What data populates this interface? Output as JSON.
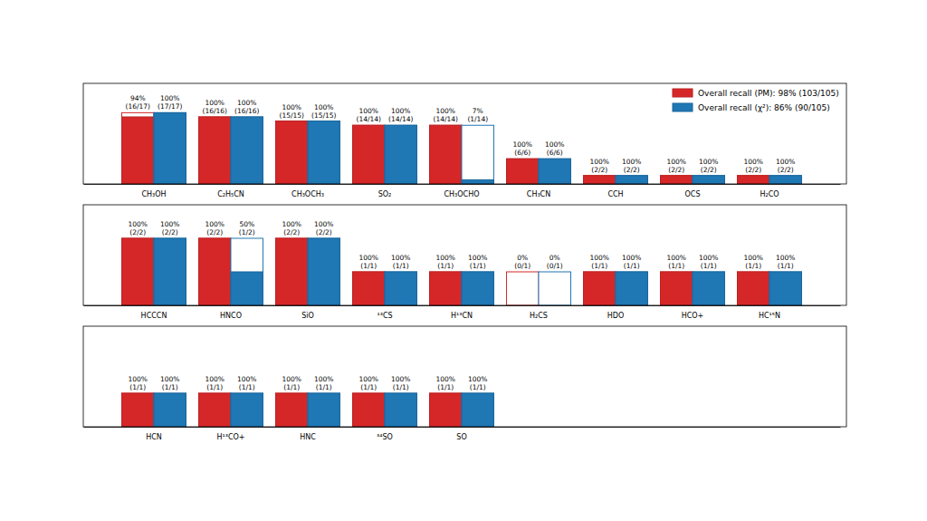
{
  "chart_data": [
    {
      "type": "bar",
      "categories": [
        "CH₃OH",
        "C₂H₅CN",
        "CH₃OCH₃",
        "SO₂",
        "CH₃OCHO",
        "CH₃CN",
        "CCH",
        "OCS",
        "H₂CO"
      ],
      "series": [
        {
          "name": "Overall recall (PM): 98% (103/105)",
          "color": "#d62728",
          "values": [
            16,
            16,
            15,
            14,
            14,
            6,
            2,
            2,
            2
          ],
          "totals": [
            17,
            16,
            15,
            14,
            14,
            6,
            2,
            2,
            2
          ],
          "recall": [
            94,
            100,
            100,
            100,
            100,
            100,
            100,
            100,
            100
          ],
          "recall_labels": [
            "94%",
            "100%",
            "100%",
            "100%",
            "100%",
            "100%",
            "100%",
            "100%",
            "100%"
          ],
          "value_labels": [
            "(16/17)",
            "(16/16)",
            "(15/15)",
            "(14/14)",
            "(14/14)",
            "(6/6)",
            "(2/2)",
            "(2/2)",
            "(2/2)"
          ]
        },
        {
          "name": "Overall recall (χ²): 86% (90/105)",
          "color": "#1f77b4",
          "values": [
            17,
            16,
            15,
            14,
            1,
            6,
            2,
            2,
            2
          ],
          "totals": [
            17,
            16,
            15,
            14,
            14,
            6,
            2,
            2,
            2
          ],
          "recall": [
            100,
            100,
            100,
            100,
            7,
            100,
            100,
            100,
            100
          ],
          "recall_labels": [
            "100%",
            "100%",
            "100%",
            "100%",
            "7%",
            "100%",
            "100%",
            "100%",
            "100%"
          ],
          "value_labels": [
            "(17/17)",
            "(16/16)",
            "(15/15)",
            "(14/14)",
            "(1/14)",
            "(6/6)",
            "(2/2)",
            "(2/2)",
            "(2/2)"
          ]
        }
      ],
      "ylim": [
        0,
        24
      ],
      "yticks": [],
      "tick_labels": "x",
      "data_labels": true,
      "legend": "upper right"
    },
    {
      "type": "bar",
      "categories": [
        "HCCCN",
        "HNCO",
        "SiO",
        "¹³CS",
        "H¹³CN",
        "H₂CS",
        "HDO",
        "HCO+",
        "HC¹⁵N"
      ],
      "series": [
        {
          "color": "#d62728",
          "values": [
            2,
            2,
            2,
            1,
            1,
            0,
            1,
            1,
            1
          ],
          "totals": [
            2,
            2,
            2,
            1,
            1,
            1,
            1,
            1,
            1
          ],
          "recall": [
            100,
            100,
            100,
            100,
            100,
            0,
            100,
            100,
            100
          ],
          "recall_labels": [
            "100%",
            "100%",
            "100%",
            "100%",
            "100%",
            "0%",
            "100%",
            "100%",
            "100%"
          ],
          "value_labels": [
            "(2/2)",
            "(2/2)",
            "(2/2)",
            "(1/1)",
            "(1/1)",
            "(0/1)",
            "(1/1)",
            "(1/1)",
            "(1/1)"
          ]
        },
        {
          "color": "#1f77b4",
          "values": [
            2,
            1,
            2,
            1,
            1,
            0,
            1,
            1,
            1
          ],
          "totals": [
            2,
            2,
            2,
            1,
            1,
            1,
            1,
            1,
            1
          ],
          "recall": [
            100,
            50,
            100,
            100,
            100,
            0,
            100,
            100,
            100
          ],
          "recall_labels": [
            "100%",
            "50%",
            "100%",
            "100%",
            "100%",
            "0%",
            "100%",
            "100%",
            "100%"
          ],
          "value_labels": [
            "(2/2)",
            "(1/2)",
            "(2/2)",
            "(1/1)",
            "(1/1)",
            "(0/1)",
            "(1/1)",
            "(1/1)",
            "(1/1)"
          ]
        }
      ],
      "ylim": [
        0,
        3
      ],
      "yticks": [],
      "tick_labels": "x",
      "data_labels": true
    },
    {
      "type": "bar",
      "categories": [
        "HCN",
        "H¹³CO+",
        "HNC",
        "³⁴SO",
        "SO"
      ],
      "series": [
        {
          "color": "#d62728",
          "values": [
            1,
            1,
            1,
            1,
            1
          ],
          "totals": [
            1,
            1,
            1,
            1,
            1
          ],
          "recall": [
            100,
            100,
            100,
            100,
            100
          ],
          "recall_labels": [
            "100%",
            "100%",
            "100%",
            "100%",
            "100%"
          ],
          "value_labels": [
            "(1/1)",
            "(1/1)",
            "(1/1)",
            "(1/1)",
            "(1/1)"
          ]
        },
        {
          "color": "#1f77b4",
          "values": [
            1,
            1,
            1,
            1,
            1
          ],
          "totals": [
            1,
            1,
            1,
            1,
            1
          ],
          "recall": [
            100,
            100,
            100,
            100,
            100
          ],
          "recall_labels": [
            "100%",
            "100%",
            "100%",
            "100%",
            "100%"
          ],
          "value_labels": [
            "(1/1)",
            "(1/1)",
            "(1/1)",
            "(1/1)",
            "(1/1)"
          ]
        }
      ],
      "ylim": [
        0,
        3
      ],
      "yticks": [],
      "tick_labels": "x",
      "data_labels": true
    }
  ]
}
